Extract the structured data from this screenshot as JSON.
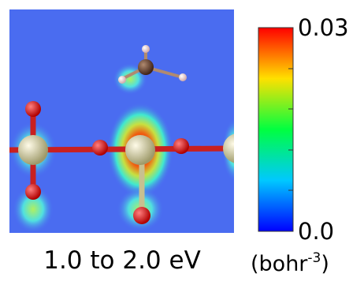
{
  "panel": {
    "caption": "1.0 to 2.0 eV"
  },
  "colorbar": {
    "ticks": [
      {
        "value": 0,
        "label": "0.0"
      },
      {
        "value": 0.03,
        "label": "0.03"
      }
    ],
    "unit": {
      "open": "(bohr",
      "sup": "-3",
      "close": ")"
    }
  }
}
